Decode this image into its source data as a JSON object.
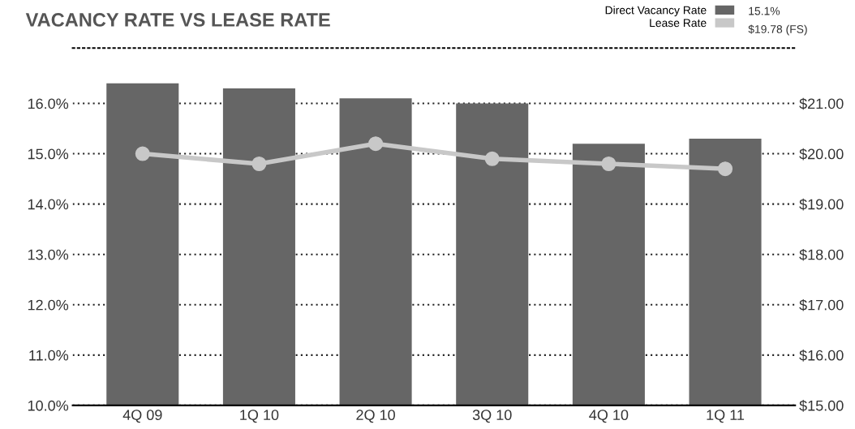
{
  "chart_data": {
    "type": "bar",
    "title": "VACANCY RATE VS LEASE RATE",
    "categories": [
      "4Q 09",
      "1Q 10",
      "2Q 10",
      "3Q 10",
      "4Q 10",
      "1Q 11"
    ],
    "series": [
      {
        "name": "Direct Vacancy Rate",
        "color": "#666666",
        "values": [
          16.4,
          16.3,
          16.1,
          16.0,
          15.2,
          15.3
        ]
      },
      {
        "name": "Lease Rate",
        "type": "line",
        "axis": "y2",
        "color": "#c8c8c8",
        "values": [
          20.0,
          19.8,
          20.2,
          19.9,
          19.8,
          19.7
        ]
      }
    ],
    "ylim": [
      10,
      17.1
    ],
    "yticks": [
      {
        "value": 10,
        "label": "10.0%"
      },
      {
        "value": 11,
        "label": "11.0%"
      },
      {
        "value": 12,
        "label": "12.0%"
      },
      {
        "value": 13,
        "label": "13.0%"
      },
      {
        "value": 14,
        "label": "14.0%"
      },
      {
        "value": 15,
        "label": "15.0%"
      },
      {
        "value": 16,
        "label": "16.0%"
      }
    ],
    "y2lim": [
      15,
      22.1
    ],
    "y2ticks": [
      {
        "value": 15,
        "label": "$15.00"
      },
      {
        "value": 16,
        "label": "$16.00"
      },
      {
        "value": 17,
        "label": "$17.00"
      },
      {
        "value": 18,
        "label": "$18.00"
      },
      {
        "value": 19,
        "label": "$19.00"
      },
      {
        "value": 20,
        "label": "$20.00"
      },
      {
        "value": 21,
        "label": "$21.00"
      }
    ],
    "grid": "y",
    "legend": "top right",
    "marker": "circle",
    "line_style": "solid",
    "annotations": [
      "15.1%",
      "$19.78 (FS)"
    ]
  }
}
